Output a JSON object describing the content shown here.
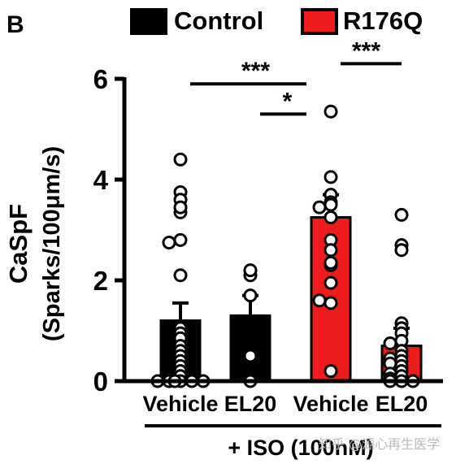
{
  "panel_label": "B",
  "chart_data": {
    "type": "bar",
    "categories": [
      "Vehicle",
      "EL20",
      "Vehicle",
      "EL20"
    ],
    "groups": [
      "Control",
      "Control",
      "R176Q",
      "R176Q"
    ],
    "values": [
      1.2,
      1.3,
      3.25,
      0.7
    ],
    "errors": [
      0.35,
      0.4,
      0.45,
      0.35
    ],
    "ylabel_line1": "CaSpF",
    "ylabel_line2": "(Sparks/100μm/s)",
    "ylim": [
      0,
      6
    ],
    "yticks": [
      0,
      2,
      4,
      6
    ],
    "legend": [
      {
        "name": "Control",
        "color": "#000000"
      },
      {
        "name": "R176Q",
        "color": "#ee1c1c"
      }
    ],
    "legend_position": "top",
    "treatment_label": "+ ISO (100nM)",
    "significance": [
      {
        "from": 0,
        "to": 2,
        "label": "***",
        "y": 5.9
      },
      {
        "from": 1,
        "to": 2,
        "label": "*",
        "y": 5.3
      },
      {
        "from": 2,
        "to": 3,
        "label": "***",
        "y": 6.3
      }
    ],
    "points": [
      [
        4.4,
        3.75,
        3.6,
        3.35,
        3.45,
        2.8,
        2.75,
        2.1,
        1.05,
        0.95,
        0.85,
        0.7,
        0.6,
        0.5,
        0.4,
        0.3,
        0.2,
        0.1,
        0.05,
        0.0,
        0.0,
        0.0,
        0.0,
        0.0,
        0.0
      ],
      [
        2.1,
        2.2,
        1.7,
        0.5,
        0.0
      ],
      [
        5.35,
        4.05,
        3.7,
        3.55,
        3.5,
        3.45,
        3.25,
        2.8,
        2.6,
        2.3,
        2.35,
        1.95,
        1.55,
        1.6,
        0.2
      ],
      [
        3.3,
        2.7,
        2.6,
        1.15,
        1.05,
        0.95,
        0.8,
        0.75,
        0.6,
        0.5,
        0.45,
        0.4,
        0.35,
        0.3,
        0.2,
        0.15,
        0.1,
        0.05,
        0.0,
        0.0,
        0.0
      ]
    ]
  },
  "watermark": "知乎 @源心再生医学"
}
